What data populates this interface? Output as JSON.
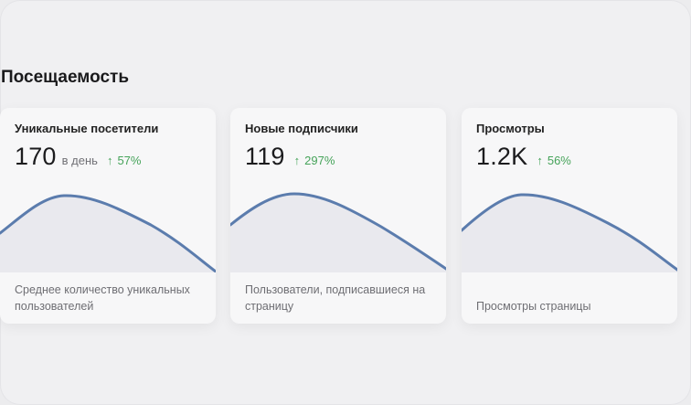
{
  "section": {
    "title": "Посещаемость"
  },
  "colors": {
    "line": "#5b7cad",
    "fill": "#e9e9ee",
    "positive": "#46a35a"
  },
  "cards": [
    {
      "title": "Уникальные посетители",
      "value": "170",
      "unit": "в день",
      "change": "57%",
      "change_icon": "arrow-up-icon",
      "description": "Среднее количество уникальных пользователей"
    },
    {
      "title": "Новые подписчики",
      "value": "119",
      "unit": "",
      "change": "297%",
      "change_icon": "arrow-up-icon",
      "description": "Пользователи, подписавшиеся на страницу"
    },
    {
      "title": "Просмотры",
      "value": "1.2K",
      "unit": "",
      "change": "56%",
      "change_icon": "arrow-up-icon",
      "description": "Просмотры страницы"
    }
  ]
}
